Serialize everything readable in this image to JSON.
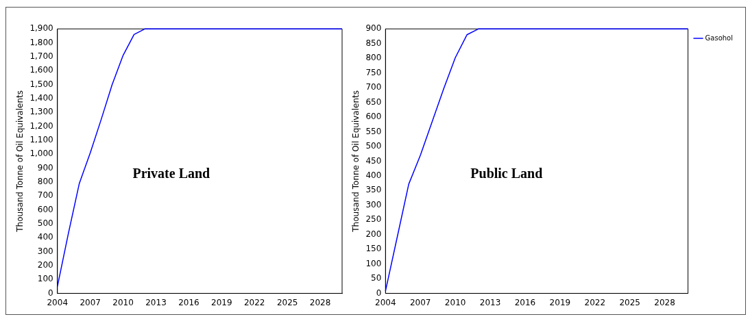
{
  "chart_data": [
    {
      "type": "line",
      "ylabel": "Thousand Tonne of Oil Equivalents",
      "annotations": [
        "Private Land"
      ],
      "legend": false,
      "marker": "none",
      "x": [
        2004,
        2005,
        2006,
        2007,
        2008,
        2009,
        2010,
        2011,
        2012,
        2013,
        2014,
        2015,
        2016,
        2017,
        2018,
        2019,
        2020,
        2021,
        2022,
        2023,
        2024,
        2025,
        2026,
        2027,
        2028,
        2029,
        2030
      ],
      "series": [
        {
          "color": "#0000ff",
          "values": [
            50,
            430,
            790,
            1010,
            1250,
            1500,
            1710,
            1860,
            1900,
            1900,
            1900,
            1900,
            1900,
            1900,
            1900,
            1900,
            1900,
            1900,
            1900,
            1900,
            1900,
            1900,
            1900,
            1900,
            1900,
            1900,
            1900
          ]
        }
      ],
      "xlim": [
        2004,
        2030
      ],
      "xticks": [
        2004,
        2007,
        2010,
        2013,
        2016,
        2019,
        2022,
        2025,
        2028
      ],
      "ylim": [
        0,
        1900
      ],
      "yticks": [
        0,
        100,
        200,
        300,
        400,
        500,
        600,
        700,
        800,
        900,
        {
          "value": 1000,
          "label": "1,000"
        },
        {
          "value": 1100,
          "label": "1,100"
        },
        {
          "value": 1200,
          "label": "1,200"
        },
        {
          "value": 1300,
          "label": "1,300"
        },
        {
          "value": 1400,
          "label": "1,400"
        },
        {
          "value": 1500,
          "label": "1,500"
        },
        {
          "value": 1600,
          "label": "1,600"
        },
        {
          "value": 1700,
          "label": "1,700"
        },
        {
          "value": 1800,
          "label": "1,800"
        },
        {
          "value": 1900,
          "label": "1,900"
        }
      ]
    },
    {
      "type": "line",
      "ylabel": "Thousand Tonne of Oil Equivalents",
      "annotations": [
        "Public Land"
      ],
      "legend": "top right",
      "marker": "none",
      "x": [
        2004,
        2005,
        2006,
        2007,
        2008,
        2009,
        2010,
        2011,
        2012,
        2013,
        2014,
        2015,
        2016,
        2017,
        2018,
        2019,
        2020,
        2021,
        2022,
        2023,
        2024,
        2025,
        2026,
        2027,
        2028,
        2029,
        2030
      ],
      "series": [
        {
          "name": "Gasohol",
          "color": "#0000ff",
          "values": [
            8,
            190,
            372,
            470,
            583,
            696,
            802,
            880,
            900,
            900,
            900,
            900,
            900,
            900,
            900,
            900,
            900,
            900,
            900,
            900,
            900,
            900,
            900,
            900,
            900,
            900,
            900
          ]
        }
      ],
      "xlim": [
        2004,
        2030
      ],
      "xticks": [
        2004,
        2007,
        2010,
        2013,
        2016,
        2019,
        2022,
        2025,
        2028
      ],
      "ylim": [
        0,
        900
      ],
      "yticks": [
        0,
        50,
        100,
        150,
        200,
        250,
        300,
        350,
        400,
        450,
        500,
        550,
        600,
        650,
        700,
        750,
        800,
        850,
        900
      ]
    }
  ]
}
